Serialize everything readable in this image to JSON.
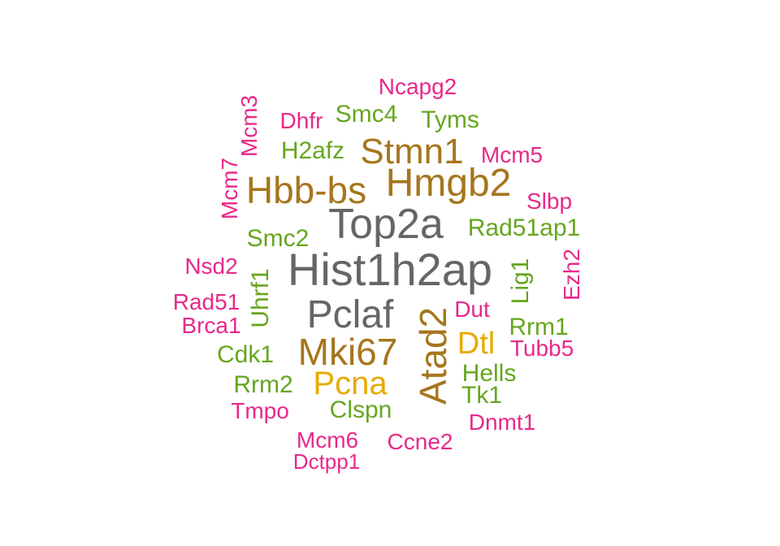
{
  "chart_data": {
    "type": "wordcloud",
    "colors": {
      "gray": "#666666",
      "olive": "#A6761D",
      "gold": "#E6AB02",
      "green": "#66A61E",
      "pink": "#E7298A"
    },
    "words": [
      {
        "text": "Hist1h2ap",
        "color": "gray"
      },
      {
        "text": "Top2a",
        "color": "gray"
      },
      {
        "text": "Pclaf",
        "color": "gray"
      },
      {
        "text": "Hmgb2",
        "color": "olive"
      },
      {
        "text": "Hbb-bs",
        "color": "olive"
      },
      {
        "text": "Stmn1",
        "color": "olive"
      },
      {
        "text": "Mki67",
        "color": "olive"
      },
      {
        "text": "Atad2",
        "color": "olive"
      },
      {
        "text": "Pcna",
        "color": "gold"
      },
      {
        "text": "Dtl",
        "color": "gold"
      },
      {
        "text": "Smc4",
        "color": "green"
      },
      {
        "text": "Tyms",
        "color": "green"
      },
      {
        "text": "H2afz",
        "color": "green"
      },
      {
        "text": "Smc2",
        "color": "green"
      },
      {
        "text": "Rad51ap1",
        "color": "green"
      },
      {
        "text": "Uhrf1",
        "color": "green"
      },
      {
        "text": "Lig1",
        "color": "green"
      },
      {
        "text": "Rrm1",
        "color": "green"
      },
      {
        "text": "Cdk1",
        "color": "green"
      },
      {
        "text": "Hells",
        "color": "green"
      },
      {
        "text": "Rrm2",
        "color": "green"
      },
      {
        "text": "Tk1",
        "color": "green"
      },
      {
        "text": "Clspn",
        "color": "green"
      },
      {
        "text": "Ncapg2",
        "color": "pink"
      },
      {
        "text": "Mcm3",
        "color": "pink"
      },
      {
        "text": "Dhfr",
        "color": "pink"
      },
      {
        "text": "Mcm5",
        "color": "pink"
      },
      {
        "text": "Mcm7",
        "color": "pink"
      },
      {
        "text": "Slbp",
        "color": "pink"
      },
      {
        "text": "Nsd2",
        "color": "pink"
      },
      {
        "text": "Ezh2",
        "color": "pink"
      },
      {
        "text": "Rad51",
        "color": "pink"
      },
      {
        "text": "Dut",
        "color": "pink"
      },
      {
        "text": "Brca1",
        "color": "pink"
      },
      {
        "text": "Tubb5",
        "color": "pink"
      },
      {
        "text": "Tmpo",
        "color": "pink"
      },
      {
        "text": "Dnmt1",
        "color": "pink"
      },
      {
        "text": "Mcm6",
        "color": "pink"
      },
      {
        "text": "Ccne2",
        "color": "pink"
      },
      {
        "text": "Dctpp1",
        "color": "pink"
      }
    ]
  }
}
